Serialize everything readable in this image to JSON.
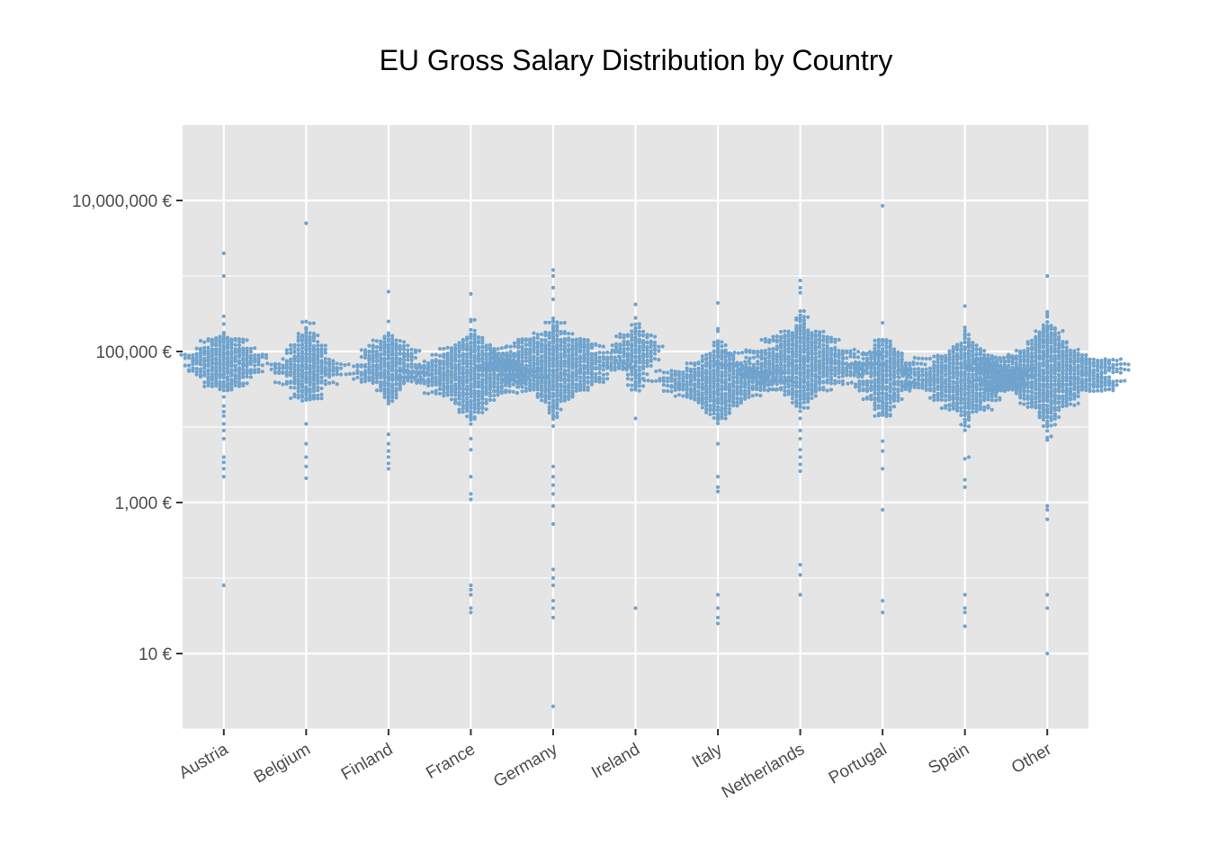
{
  "chart_data": {
    "type": "scatter",
    "subtype": "beeswarm",
    "title": "EU Gross Salary Distribution by Country",
    "xlabel": "",
    "ylabel": "",
    "y_scale": "log10",
    "ylim": [
      1,
      100000000
    ],
    "y_ticks": [
      {
        "value": 10,
        "label": "10 €"
      },
      {
        "value": 1000,
        "label": "1,000 €"
      },
      {
        "value": 100000,
        "label": "100,000 €"
      },
      {
        "value": 10000000,
        "label": "10,000,000 €"
      }
    ],
    "y_minor_ticks": [
      1,
      100,
      10000,
      1000000
    ],
    "categories": [
      "Austria",
      "Belgium",
      "Finland",
      "France",
      "Germany",
      "Ireland",
      "Italy",
      "Netherlands",
      "Portugal",
      "Spain",
      "Other"
    ],
    "point_color": "#6fa3cd",
    "panel_background": "#e5e5e5",
    "grid_color": "#ffffff",
    "grid": true,
    "legend": "none",
    "series": [
      {
        "category": "Austria",
        "median": 70000,
        "spread": 0.14,
        "core_count": 320,
        "core_range": [
          30000,
          300000
        ],
        "outliers": [
          2000000,
          1000000,
          80,
          2200,
          2800,
          3400,
          4000,
          7000,
          9000,
          11000,
          14000,
          16000,
          19000,
          25000
        ]
      },
      {
        "category": "Belgium",
        "median": 60000,
        "spread": 0.16,
        "core_count": 300,
        "core_range": [
          22000,
          300000
        ],
        "outliers": [
          5000000,
          2100,
          3000,
          4000,
          6000,
          11000
        ]
      },
      {
        "category": "Finland",
        "median": 62000,
        "spread": 0.12,
        "core_count": 300,
        "core_range": [
          20000,
          180000
        ],
        "outliers": [
          620000,
          250000,
          2800,
          3300,
          4000,
          4800,
          6000,
          8000
        ]
      },
      {
        "category": "France",
        "median": 50000,
        "spread": 0.15,
        "core_count": 600,
        "core_range": [
          10000,
          400000
        ],
        "outliers": [
          580000,
          80,
          70,
          60,
          40,
          35,
          1100,
          1300,
          2200,
          5000,
          7000
        ]
      },
      {
        "category": "Germany",
        "median": 65000,
        "spread": 0.16,
        "core_count": 700,
        "core_range": [
          5000,
          600000
        ],
        "outliers": [
          1200000,
          1000000,
          700000,
          2,
          30,
          40,
          50,
          80,
          100,
          130,
          520,
          900,
          1300,
          1700,
          2200,
          3000
        ]
      },
      {
        "category": "Ireland",
        "median": 100000,
        "spread": 0.14,
        "core_count": 180,
        "core_range": [
          30000,
          300000
        ],
        "outliers": [
          420000,
          13000,
          40
        ]
      },
      {
        "category": "Italy",
        "median": 40000,
        "spread": 0.13,
        "core_count": 500,
        "core_range": [
          9000,
          300000
        ],
        "outliers": [
          440000,
          200000,
          25,
          30,
          40,
          60,
          1400,
          1600,
          2200,
          6000
        ]
      },
      {
        "category": "Netherlands",
        "median": 70000,
        "spread": 0.15,
        "core_count": 650,
        "core_range": [
          15000,
          400000
        ],
        "outliers": [
          870000,
          700000,
          600000,
          60,
          110,
          150,
          2600,
          3200,
          4000,
          5000,
          7000,
          9000,
          13000
        ]
      },
      {
        "category": "Portugal",
        "median": 50000,
        "spread": 0.17,
        "core_count": 320,
        "core_range": [
          12000,
          150000
        ],
        "outliers": [
          8500000,
          240000,
          35,
          50,
          800,
          2800,
          4800,
          6500
        ]
      },
      {
        "category": "Spain",
        "median": 45000,
        "spread": 0.15,
        "core_count": 600,
        "core_range": [
          9000,
          350000
        ],
        "outliers": [
          400000,
          23,
          35,
          40,
          60,
          1600,
          2000,
          3800,
          4000
        ]
      },
      {
        "category": "Other",
        "median": 50000,
        "spread": 0.17,
        "core_count": 800,
        "core_range": [
          600,
          400000
        ],
        "outliers": [
          1000000,
          10,
          40,
          60,
          600,
          800,
          900
        ]
      }
    ]
  }
}
